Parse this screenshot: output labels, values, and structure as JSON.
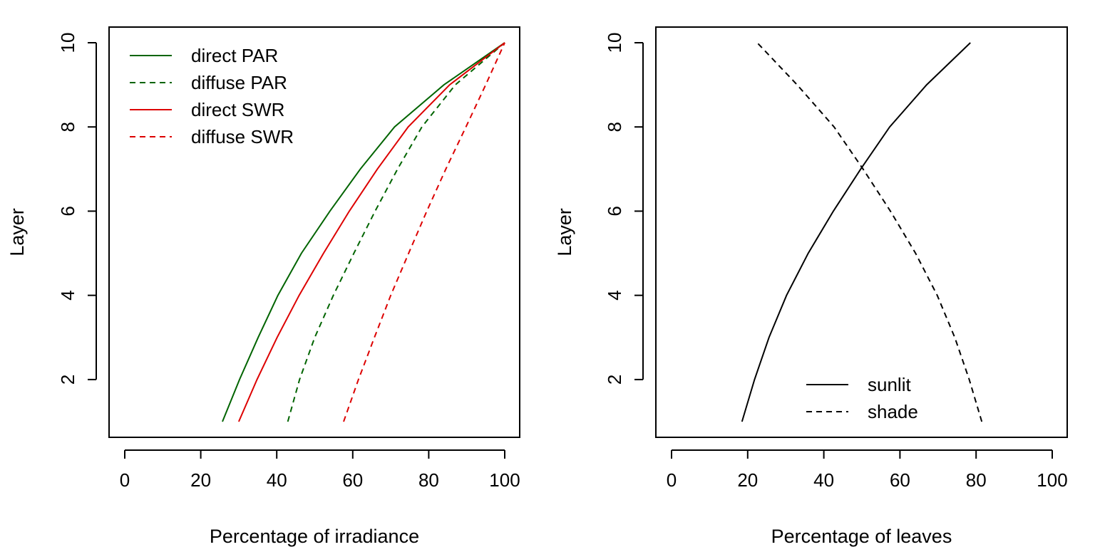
{
  "chart_data": [
    {
      "type": "line",
      "xlabel": "Percentage of irradiance",
      "ylabel": "Layer",
      "xlim": [
        0,
        100
      ],
      "ylim": [
        1,
        10
      ],
      "xticks": [
        0,
        20,
        40,
        60,
        80,
        100
      ],
      "yticks": [
        2,
        4,
        6,
        8,
        10
      ],
      "grid": false,
      "legend_position": "top-left",
      "y": [
        1,
        2,
        3,
        4,
        5,
        6,
        7,
        8,
        9,
        10
      ],
      "series": [
        {
          "name": "direct PAR",
          "color": "#006400",
          "dash": "solid",
          "values": [
            25.7,
            30.2,
            35.1,
            40.3,
            46.5,
            54.0,
            62.0,
            71.0,
            84.0,
            100
          ]
        },
        {
          "name": "diffuse PAR",
          "color": "#006400",
          "dash": "dashed",
          "values": [
            42.9,
            46.0,
            50.0,
            54.9,
            60.3,
            65.9,
            71.8,
            78.2,
            87.0,
            100
          ]
        },
        {
          "name": "direct SWR",
          "color": "#dd0000",
          "dash": "solid",
          "values": [
            30.0,
            34.8,
            40.1,
            45.9,
            52.3,
            59.1,
            66.5,
            74.6,
            85.5,
            100
          ]
        },
        {
          "name": "diffuse SWR",
          "color": "#dd0000",
          "dash": "dashed",
          "values": [
            57.6,
            61.5,
            65.7,
            70.0,
            74.7,
            79.5,
            84.5,
            89.8,
            95.0,
            100
          ]
        }
      ]
    },
    {
      "type": "line",
      "xlabel": "Percentage of leaves",
      "ylabel": "Layer",
      "xlim": [
        0,
        100
      ],
      "ylim": [
        1,
        10
      ],
      "xticks": [
        0,
        20,
        40,
        60,
        80,
        100
      ],
      "yticks": [
        2,
        4,
        6,
        8,
        10
      ],
      "grid": false,
      "legend_position": "bottom-right",
      "y": [
        1,
        2,
        3,
        4,
        5,
        6,
        7,
        8,
        9,
        10
      ],
      "series": [
        {
          "name": "sunlit",
          "color": "#000000",
          "dash": "solid",
          "values": [
            18.5,
            21.8,
            25.6,
            30.2,
            35.9,
            42.5,
            49.7,
            57.3,
            67.0,
            78.5
          ]
        },
        {
          "name": "shade",
          "color": "#000000",
          "dash": "dashed",
          "values": [
            81.5,
            78.2,
            74.4,
            69.8,
            64.1,
            57.5,
            50.3,
            42.7,
            33.0,
            22.5
          ]
        }
      ]
    }
  ]
}
